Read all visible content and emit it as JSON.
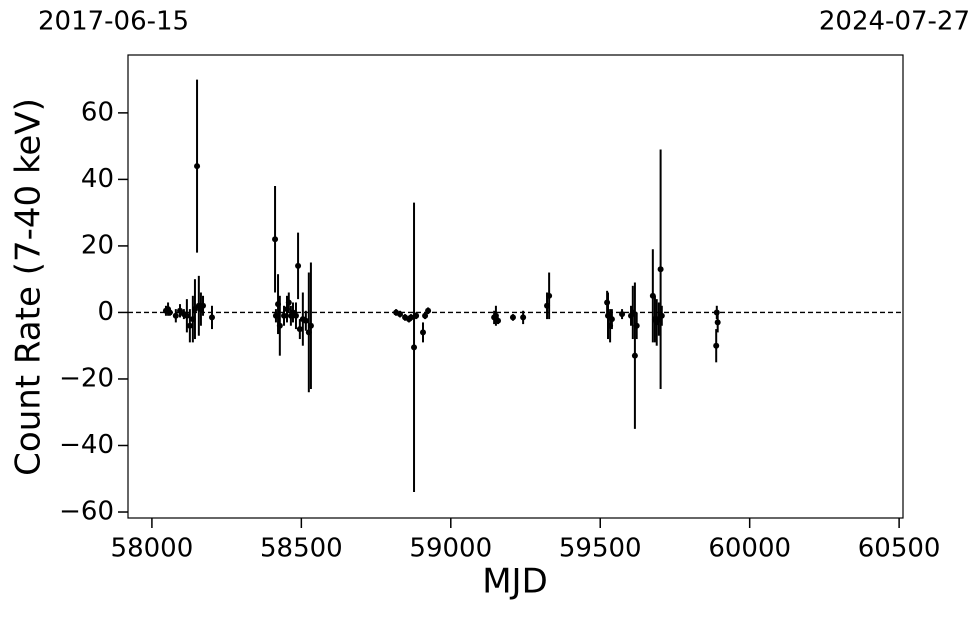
{
  "chart_data": {
    "type": "errorbar",
    "top_labels": [
      "2017-06-15",
      "2024-07-27"
    ],
    "xlabel": "MJD",
    "ylabel": "Count Rate (7-40 keV)",
    "xlim": [
      57920,
      60513
    ],
    "ylim": [
      -61.8,
      77.4
    ],
    "xticks": [
      58000,
      58500,
      59000,
      59500,
      60000,
      60500
    ],
    "yticks": [
      {
        "value": -60,
        "label": "−60"
      },
      {
        "value": -40,
        "label": "−40"
      },
      {
        "value": -20,
        "label": "−20"
      },
      0,
      20,
      40,
      60
    ],
    "hline": 0,
    "series": [
      {
        "color": "#000000",
        "x": [
          58047,
          58054,
          58060,
          58080,
          58094,
          58107,
          58117,
          58127,
          58137,
          58144,
          58151,
          58157,
          58164,
          58171,
          58201,
          58412,
          58415,
          58422,
          58428,
          58442,
          58452,
          58458,
          58465,
          58472,
          58482,
          58489,
          58495,
          58505,
          58515,
          58525,
          58532,
          58817,
          58830,
          58847,
          58860,
          58867,
          58877,
          58884,
          58907,
          58914,
          58924,
          59145,
          59151,
          59158,
          59208,
          59242,
          59322,
          59329,
          59523,
          59526,
          59533,
          59539,
          59573,
          59603,
          59609,
          59616,
          59622,
          59676,
          59683,
          59689,
          59696,
          59702,
          59706,
          59890,
          59893,
          59888
        ],
        "values": [
          0.5,
          1,
          0,
          -1,
          0.5,
          -0.5,
          -1,
          -4,
          -2,
          1,
          44,
          2,
          1,
          2,
          -1.5,
          22,
          -1,
          2.5,
          -4,
          -1,
          1,
          3,
          -1,
          0,
          -1,
          14,
          -5,
          -2,
          -2.5,
          -6,
          -4,
          0,
          -0.5,
          -1.5,
          -2,
          -1.5,
          -10.5,
          -1,
          -6,
          -1,
          0.5,
          -1.5,
          -1,
          -2.5,
          -1.5,
          -1.5,
          2,
          5,
          3,
          -1,
          -4,
          -2,
          -0.5,
          -1,
          0,
          -13,
          -4,
          5,
          -2,
          -3,
          -2,
          13,
          -1,
          0,
          -3,
          -10
        ],
        "errors": [
          1.5,
          2,
          1,
          2,
          2,
          1.5,
          5,
          5,
          7,
          9,
          26,
          9,
          5,
          3,
          3.5,
          16,
          2,
          9,
          9,
          3,
          4,
          3,
          3,
          3,
          4,
          10,
          3,
          8,
          3,
          18,
          19,
          1,
          1,
          1,
          1,
          1,
          43.5,
          1,
          3,
          1,
          1,
          2,
          3,
          1,
          1,
          2,
          4,
          7,
          3.5,
          7,
          5,
          3,
          1.5,
          3,
          8,
          22,
          4,
          14,
          7,
          7,
          5,
          36,
          3,
          2,
          3,
          5
        ]
      }
    ]
  }
}
